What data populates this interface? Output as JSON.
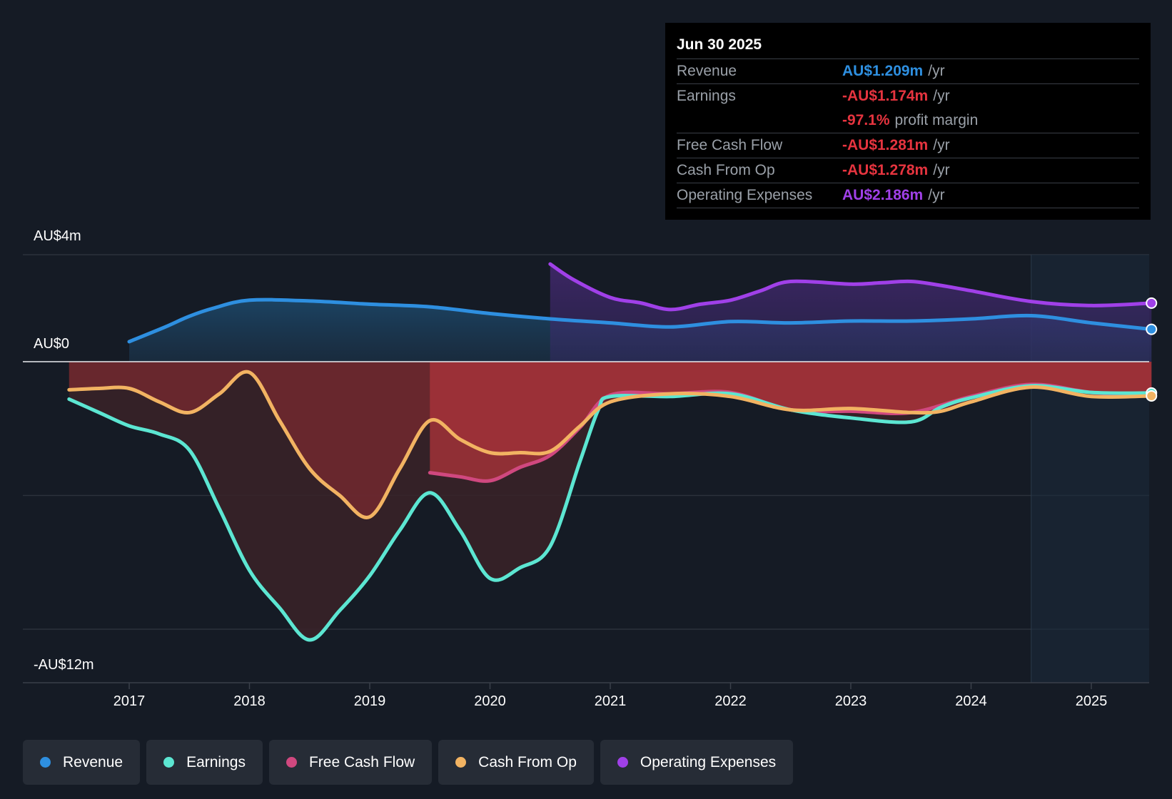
{
  "chart_data": {
    "type": "line",
    "y_axis_labels": [
      "AU$4m",
      "AU$0",
      "-AU$12m"
    ],
    "ylim": [
      -12,
      4
    ],
    "ytick_values": [
      -10,
      -5,
      0,
      4
    ],
    "xlim": [
      2016.5,
      2025.5
    ],
    "x_ticks": [
      2017,
      2018,
      2019,
      2020,
      2021,
      2022,
      2023,
      2024,
      2025
    ],
    "x_tick_labels": [
      "2017",
      "2018",
      "2019",
      "2020",
      "2021",
      "2022",
      "2023",
      "2024",
      "2025"
    ],
    "forecast_shade_start": 2024.5,
    "series": [
      {
        "name": "Revenue",
        "color": "#2e8fe0",
        "area": true,
        "x": [
          2017.0,
          2017.3,
          2017.5,
          2017.7,
          2018.0,
          2018.5,
          2019.0,
          2019.5,
          2020.0,
          2020.5,
          2021.0,
          2021.5,
          2022.0,
          2022.5,
          2023.0,
          2023.5,
          2024.0,
          2024.5,
          2025.0,
          2025.5
        ],
        "values": [
          0.75,
          1.3,
          1.7,
          2.0,
          2.3,
          2.27,
          2.15,
          2.05,
          1.8,
          1.6,
          1.45,
          1.3,
          1.5,
          1.45,
          1.52,
          1.52,
          1.6,
          1.72,
          1.45,
          1.21
        ]
      },
      {
        "name": "Operating Expenses",
        "color": "#a040e8",
        "area": true,
        "x": [
          2020.5,
          2020.7,
          2021.0,
          2021.25,
          2021.5,
          2021.75,
          2022.0,
          2022.25,
          2022.5,
          2023.0,
          2023.25,
          2023.5,
          2023.75,
          2024.0,
          2024.5,
          2025.0,
          2025.5
        ],
        "values": [
          3.65,
          3.05,
          2.4,
          2.2,
          1.95,
          2.15,
          2.3,
          2.65,
          3.0,
          2.9,
          2.95,
          3.0,
          2.85,
          2.65,
          2.25,
          2.1,
          2.19
        ]
      },
      {
        "name": "Free Cash Flow",
        "color": "#d0487f",
        "area": true,
        "x": [
          2019.5,
          2019.75,
          2020.0,
          2020.25,
          2020.5,
          2020.75,
          2021.0,
          2021.5,
          2022.0,
          2022.5,
          2023.0,
          2023.5,
          2024.0,
          2024.5,
          2025.0,
          2025.5
        ],
        "values": [
          -4.15,
          -4.3,
          -4.45,
          -3.95,
          -3.5,
          -2.45,
          -1.25,
          -1.2,
          -1.15,
          -1.8,
          -1.85,
          -1.9,
          -1.3,
          -0.85,
          -1.15,
          -1.28
        ]
      },
      {
        "name": "Earnings",
        "color": "#5ce6d2",
        "area": false,
        "x": [
          2016.5,
          2016.75,
          2017.0,
          2017.25,
          2017.5,
          2017.75,
          2018.0,
          2018.25,
          2018.5,
          2018.75,
          2019.0,
          2019.25,
          2019.5,
          2019.75,
          2020.0,
          2020.25,
          2020.5,
          2020.75,
          2020.9,
          2021.0,
          2021.5,
          2022.0,
          2022.5,
          2023.0,
          2023.5,
          2023.75,
          2024.0,
          2024.5,
          2025.0,
          2025.5
        ],
        "values": [
          -1.4,
          -1.9,
          -2.4,
          -2.7,
          -3.3,
          -5.5,
          -7.8,
          -9.2,
          -10.4,
          -9.3,
          -8.0,
          -6.3,
          -4.9,
          -6.3,
          -8.1,
          -7.7,
          -6.9,
          -3.7,
          -1.8,
          -1.3,
          -1.3,
          -1.2,
          -1.8,
          -2.1,
          -2.25,
          -1.7,
          -1.35,
          -0.9,
          -1.15,
          -1.17
        ]
      },
      {
        "name": "Cash From Op",
        "color": "#f2b362",
        "area": false,
        "x": [
          2016.5,
          2016.75,
          2017.0,
          2017.25,
          2017.5,
          2017.75,
          2018.0,
          2018.25,
          2018.5,
          2018.75,
          2019.0,
          2019.25,
          2019.5,
          2019.75,
          2020.0,
          2020.25,
          2020.5,
          2020.75,
          2021.0,
          2021.5,
          2022.0,
          2022.5,
          2023.0,
          2023.5,
          2023.75,
          2024.0,
          2024.5,
          2025.0,
          2025.5
        ],
        "values": [
          -1.05,
          -1.0,
          -1.0,
          -1.5,
          -1.9,
          -1.2,
          -0.4,
          -2.2,
          -4.0,
          -5.0,
          -5.8,
          -4.0,
          -2.2,
          -2.9,
          -3.4,
          -3.4,
          -3.35,
          -2.4,
          -1.5,
          -1.2,
          -1.3,
          -1.8,
          -1.75,
          -1.9,
          -1.85,
          -1.5,
          -0.95,
          -1.3,
          -1.28
        ]
      }
    ],
    "end_markers": [
      "Revenue",
      "Operating Expenses",
      "Earnings",
      "Cash From Op"
    ]
  },
  "tooltip": {
    "date": "Jun 30 2025",
    "rows": [
      {
        "label": "Revenue",
        "value": "AU$1.209m",
        "suffix": "/yr",
        "color": "#2e8fe0"
      },
      {
        "label": "Earnings",
        "value": "-AU$1.174m",
        "suffix": "/yr",
        "color": "#e6343f"
      },
      {
        "label": "",
        "value": "-97.1%",
        "suffix": "profit margin",
        "color": "#e6343f"
      },
      {
        "label": "Free Cash Flow",
        "value": "-AU$1.281m",
        "suffix": "/yr",
        "color": "#e6343f"
      },
      {
        "label": "Cash From Op",
        "value": "-AU$1.278m",
        "suffix": "/yr",
        "color": "#e6343f"
      },
      {
        "label": "Operating Expenses",
        "value": "AU$2.186m",
        "suffix": "/yr",
        "color": "#a040e8"
      }
    ]
  },
  "legend": [
    {
      "label": "Revenue",
      "color": "#2e8fe0"
    },
    {
      "label": "Earnings",
      "color": "#5ce6d2"
    },
    {
      "label": "Free Cash Flow",
      "color": "#d0487f"
    },
    {
      "label": "Cash From Op",
      "color": "#f2b362"
    },
    {
      "label": "Operating Expenses",
      "color": "#a040e8"
    }
  ]
}
